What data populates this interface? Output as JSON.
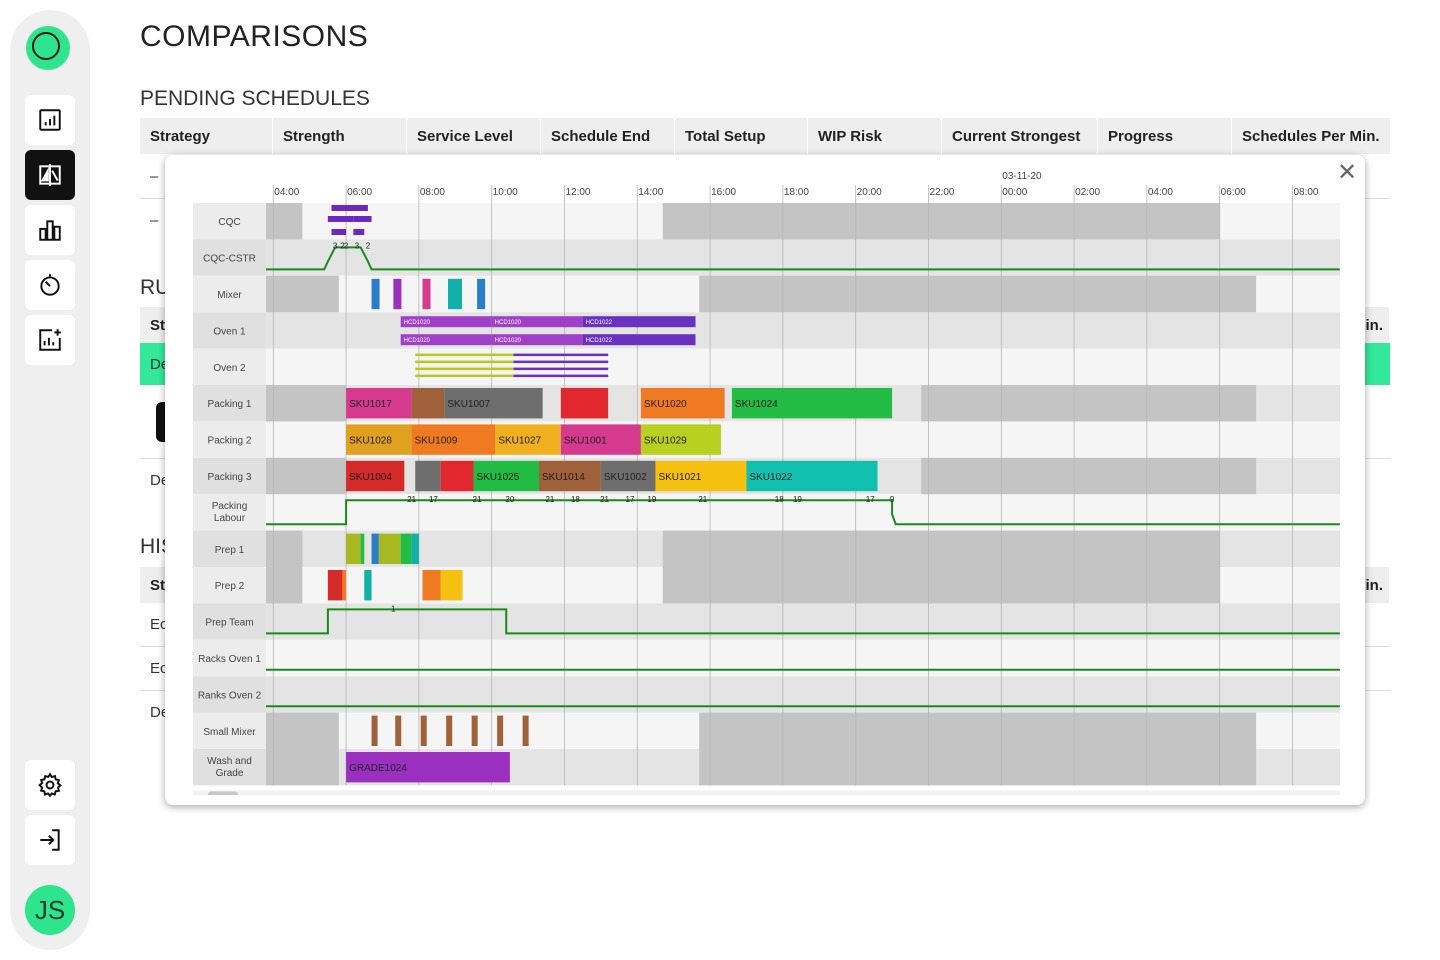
{
  "page": {
    "title": "COMPARISONS",
    "pending_title": "PENDING SCHEDULES",
    "running_title_partial": "RU",
    "history_title_partial": "HIS"
  },
  "sidebar": {
    "items": [
      {
        "name": "report-icon",
        "active": false
      },
      {
        "name": "compare-icon",
        "active": true
      },
      {
        "name": "bar-chart-icon",
        "active": false
      },
      {
        "name": "timer-icon",
        "active": false
      },
      {
        "name": "add-chart-icon",
        "active": false
      }
    ],
    "settings": "gear-icon",
    "logout": "logout-icon",
    "avatar_initials": "JS"
  },
  "table": {
    "columns": [
      "Strategy",
      "Strength",
      "Service Level",
      "Schedule End",
      "Total Setup",
      "WIP Risk",
      "Current Strongest",
      "Progress",
      "Schedules Per Min."
    ],
    "pending_rows": [
      "–",
      "–"
    ],
    "running_header_partial": [
      "St",
      "in."
    ],
    "running_rows": [
      "De",
      "De"
    ],
    "history_header_partial": [
      "St",
      "in."
    ],
    "history_rows": [
      "Ec",
      "Ec",
      "De"
    ]
  },
  "colors": {
    "accent": "#2ee58e",
    "highlight_row": "#33e999",
    "line_green": "#1a8a1a"
  },
  "chart_data": {
    "type": "gantt",
    "date_label": "03-11-20",
    "time_ticks": [
      "04:00",
      "06:00",
      "08:00",
      "10:00",
      "12:00",
      "14:00",
      "16:00",
      "18:00",
      "20:00",
      "22:00",
      "00:00",
      "02:00",
      "04:00",
      "06:00",
      "08:00"
    ],
    "rows": [
      "CQC",
      "CQC-CSTR",
      "Mixer",
      "Oven 1",
      "Oven 2",
      "Packing 1",
      "Packing 2",
      "Packing 3",
      "Packing Labour",
      "Prep 1",
      "Prep 2",
      "Prep Team",
      "Racks Oven 1",
      "Ranks Oven 2",
      "Small Mixer",
      "Wash and Grade"
    ],
    "bars": [
      {
        "row": "Packing 1",
        "start": 6.0,
        "end": 7.8,
        "label": "SKU1017",
        "color": "#d63a8e"
      },
      {
        "row": "Packing 1",
        "start": 7.8,
        "end": 8.7,
        "label": "",
        "color": "#a0603a"
      },
      {
        "row": "Packing 1",
        "start": 8.7,
        "end": 11.4,
        "label": "SKU1007",
        "color": "#6e6e6e"
      },
      {
        "row": "Packing 1",
        "start": 11.9,
        "end": 13.2,
        "label": "",
        "color": "#e0282e"
      },
      {
        "row": "Packing 1",
        "start": 14.1,
        "end": 16.4,
        "label": "SKU1020",
        "color": "#f07a22"
      },
      {
        "row": "Packing 1",
        "start": 16.6,
        "end": 21.0,
        "label": "SKU1024",
        "color": "#22bb44"
      },
      {
        "row": "Packing 2",
        "start": 6.0,
        "end": 7.8,
        "label": "SKU1028",
        "color": "#e0a020"
      },
      {
        "row": "Packing 2",
        "start": 7.8,
        "end": 10.1,
        "label": "SKU1009",
        "color": "#f07a22"
      },
      {
        "row": "Packing 2",
        "start": 10.1,
        "end": 11.9,
        "label": "SKU1027",
        "color": "#f0b020"
      },
      {
        "row": "Packing 2",
        "start": 11.9,
        "end": 14.1,
        "label": "SKU1001",
        "color": "#d63a8e"
      },
      {
        "row": "Packing 2",
        "start": 14.1,
        "end": 16.3,
        "label": "SKU1029",
        "color": "#b8d020"
      },
      {
        "row": "Packing 3",
        "start": 6.0,
        "end": 7.6,
        "label": "SKU1004",
        "color": "#d42a2a"
      },
      {
        "row": "Packing 3",
        "start": 7.9,
        "end": 8.6,
        "label": "",
        "color": "#6e6e6e"
      },
      {
        "row": "Packing 3",
        "start": 8.6,
        "end": 9.5,
        "label": "",
        "color": "#e0282e"
      },
      {
        "row": "Packing 3",
        "start": 9.5,
        "end": 11.3,
        "label": "SKU1025",
        "color": "#22bb44"
      },
      {
        "row": "Packing 3",
        "start": 11.3,
        "end": 13.0,
        "label": "SKU1014",
        "color": "#a0603a"
      },
      {
        "row": "Packing 3",
        "start": 13.0,
        "end": 14.5,
        "label": "SKU1002",
        "color": "#6e6e6e"
      },
      {
        "row": "Packing 3",
        "start": 14.5,
        "end": 17.0,
        "label": "SKU1021",
        "color": "#f5c010"
      },
      {
        "row": "Packing 3",
        "start": 17.0,
        "end": 20.6,
        "label": "SKU1022",
        "color": "#12c0b0"
      },
      {
        "row": "Wash and Grade",
        "start": 6.0,
        "end": 10.5,
        "label": "GRADE1024",
        "color": "#9b30c0"
      },
      {
        "row": "Oven 1",
        "start": 7.5,
        "end": 10.0,
        "label": "HCD1020",
        "color": "#a040c8"
      },
      {
        "row": "Oven 1",
        "start": 10.0,
        "end": 12.5,
        "label": "HCD1020",
        "color": "#a040c8"
      },
      {
        "row": "Oven 1",
        "start": 12.5,
        "end": 15.6,
        "label": "HCD1022",
        "color": "#6a30c0"
      }
    ],
    "labour_values": [
      "21",
      "17",
      "21",
      "20",
      "21",
      "18",
      "21",
      "17",
      "19",
      "21",
      "18",
      "19",
      "17",
      "9"
    ],
    "prep_team_value": "1",
    "cqc_cstr_values": [
      "3",
      "2",
      "2",
      "3",
      "2"
    ]
  }
}
